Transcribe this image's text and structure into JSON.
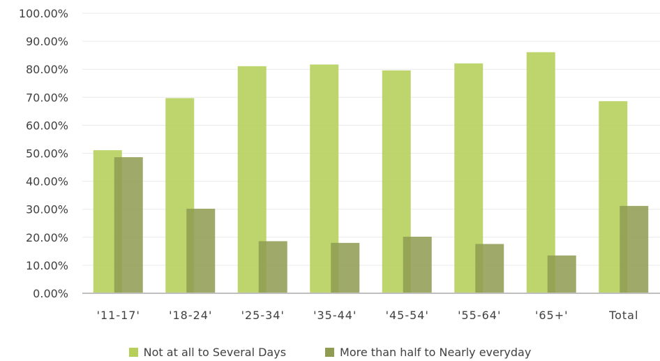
{
  "chart_data": {
    "type": "bar",
    "categories": [
      "'11-17'",
      "'18-24'",
      "'25-34'",
      "'35-44'",
      "'45-54'",
      "'55-64'",
      "'65+'",
      "Total"
    ],
    "series": [
      {
        "name": "Not at all to Several Days",
        "values": [
          51.1,
          69.7,
          81.1,
          81.7,
          79.6,
          82.1,
          86.1,
          68.6
        ],
        "color": "#b5cf5a"
      },
      {
        "name": "More than half to Nearly everyday",
        "values": [
          48.6,
          30.2,
          18.6,
          18.0,
          20.2,
          17.6,
          13.5,
          31.2
        ],
        "color": "#8f9c52"
      }
    ],
    "y_ticks": [
      "0.00%",
      "10.00%",
      "20.00%",
      "30.00%",
      "40.00%",
      "50.00%",
      "60.00%",
      "70.00%",
      "80.00%",
      "90.00%",
      "100.00%"
    ],
    "ylim": [
      0,
      100
    ],
    "grid": true,
    "legend_position": "bottom"
  }
}
